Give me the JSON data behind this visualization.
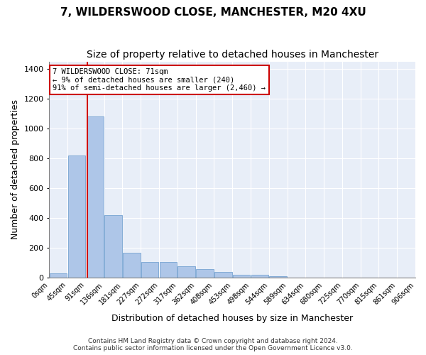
{
  "title1": "7, WILDERSWOOD CLOSE, MANCHESTER, M20 4XU",
  "title2": "Size of property relative to detached houses in Manchester",
  "xlabel": "Distribution of detached houses by size in Manchester",
  "ylabel": "Number of detached properties",
  "annotation_line1": "7 WILDERSWOOD CLOSE: 71sqm",
  "annotation_line2": "← 9% of detached houses are smaller (240)",
  "annotation_line3": "91% of semi-detached houses are larger (2,460) →",
  "footer1": "Contains HM Land Registry data © Crown copyright and database right 2024.",
  "footer2": "Contains public sector information licensed under the Open Government Licence v3.0.",
  "bin_labels": [
    "0sqm",
    "45sqm",
    "91sqm",
    "136sqm",
    "181sqm",
    "227sqm",
    "272sqm",
    "317sqm",
    "362sqm",
    "408sqm",
    "453sqm",
    "498sqm",
    "544sqm",
    "589sqm",
    "634sqm",
    "680sqm",
    "725sqm",
    "770sqm",
    "815sqm",
    "861sqm",
    "906sqm"
  ],
  "bar_values": [
    30,
    820,
    1080,
    420,
    165,
    105,
    105,
    75,
    55,
    40,
    20,
    20,
    10,
    0,
    0,
    0,
    0,
    0,
    0,
    0
  ],
  "bar_color": "#aec6e8",
  "bar_edge_color": "#6699cc",
  "red_line_x": 1.58,
  "red_line_color": "#cc0000",
  "annotation_box_color": "#cc0000",
  "plot_background": "#e8eef8",
  "ylim": [
    0,
    1450
  ],
  "yticks": [
    0,
    200,
    400,
    600,
    800,
    1000,
    1200,
    1400
  ],
  "title1_fontsize": 11,
  "title2_fontsize": 10,
  "xlabel_fontsize": 9,
  "ylabel_fontsize": 9
}
